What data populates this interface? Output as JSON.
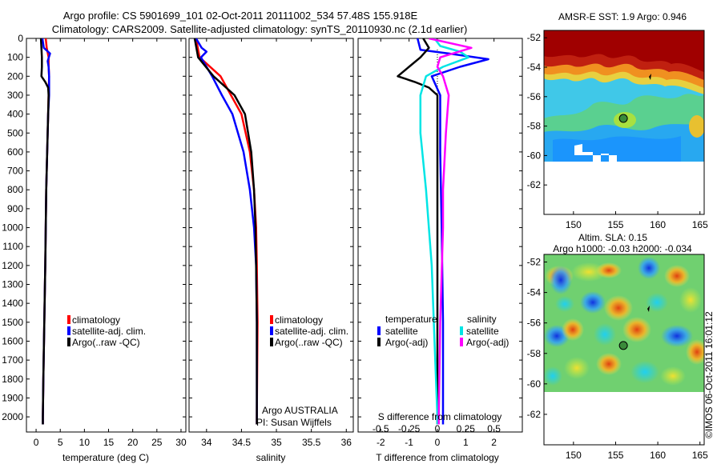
{
  "header": {
    "line1": "Argo profile: CS 5901699_101 02-Oct-2011 20111002_534 57.48S 155.918E",
    "line2": "Climatology: CARS2009. Satellite-adjusted climatology: synTS_20110930.nc (2.1d earlier)"
  },
  "side_text": "©IMOS 06-Oct-2011 16:01:12",
  "colors": {
    "climatology": "#ff0000",
    "satellite": "#0000ff",
    "argo": "#000000",
    "satellite_salinity": "#00e5e5",
    "argo_salinity": "#ff00ff"
  },
  "chart_data": [
    {
      "type": "line",
      "id": "temperature",
      "xlabel": "temperature (deg C)",
      "ylabel": "",
      "xlim": [
        -2,
        31
      ],
      "ylim": [
        2080,
        0
      ],
      "xticks": [
        0,
        5,
        10,
        15,
        20,
        25,
        30
      ],
      "yticks": [
        0,
        100,
        200,
        300,
        400,
        500,
        600,
        700,
        800,
        900,
        1000,
        1100,
        1200,
        1300,
        1400,
        1500,
        1600,
        1700,
        1800,
        1900,
        2000
      ],
      "legend": [
        "climatology",
        "satellite-adj. clim.",
        "Argo(..raw -QC)"
      ],
      "series": [
        {
          "name": "climatology",
          "color": "#ff0000",
          "y": [
            0,
            50,
            100,
            150,
            200,
            300,
            400,
            600,
            800,
            1000,
            1200,
            1500,
            1800,
            2000,
            2040
          ],
          "x": [
            2.0,
            2.2,
            2.6,
            2.6,
            2.7,
            2.6,
            2.5,
            2.3,
            2.1,
            2.0,
            1.9,
            1.7,
            1.5,
            1.4,
            1.4
          ]
        },
        {
          "name": "satellite-adj. clim.",
          "color": "#0000ff",
          "y": [
            0,
            50,
            80,
            120,
            150,
            200,
            300,
            400,
            600,
            800,
            1000,
            1200,
            1500,
            1800,
            2000,
            2040
          ],
          "x": [
            1.3,
            1.6,
            2.9,
            2.4,
            2.6,
            2.7,
            2.7,
            2.5,
            2.3,
            2.1,
            2.0,
            1.9,
            1.7,
            1.5,
            1.4,
            1.4
          ]
        },
        {
          "name": "Argo(..raw -QC)",
          "color": "#000000",
          "y": [
            0,
            50,
            100,
            150,
            200,
            230,
            260,
            300,
            400,
            600,
            800,
            1000,
            1200,
            1500,
            1800,
            2000,
            2040
          ],
          "x": [
            1.0,
            1.1,
            1.2,
            1.2,
            1.1,
            1.9,
            2.5,
            2.6,
            2.5,
            2.3,
            2.1,
            2.0,
            1.9,
            1.7,
            1.5,
            1.4,
            1.4
          ]
        }
      ]
    },
    {
      "type": "line",
      "id": "salinity",
      "xlabel": "salinity",
      "ylabel": "",
      "xlim": [
        33.75,
        36.1
      ],
      "ylim": [
        2080,
        0
      ],
      "xticks": [
        34,
        34.5,
        35,
        35.5,
        36
      ],
      "legend": [
        "climatology",
        "satellite-adj. clim.",
        "Argo(..raw -QC)"
      ],
      "annotation": [
        "Argo AUSTRALIA",
        "PI: Susan Wijffels"
      ],
      "series": [
        {
          "name": "climatology",
          "color": "#ff0000",
          "y": [
            0,
            100,
            200,
            300,
            400,
            600,
            800,
            1000,
            1200,
            1500,
            2000,
            2040
          ],
          "x": [
            33.85,
            33.9,
            34.2,
            34.35,
            34.5,
            34.62,
            34.68,
            34.71,
            34.72,
            34.73,
            34.72,
            34.72
          ]
        },
        {
          "name": "satellite-adj. clim.",
          "color": "#0000ff",
          "y": [
            0,
            50,
            70,
            100,
            150,
            200,
            300,
            400,
            600,
            800,
            1000,
            1200,
            1500,
            2000,
            2040
          ],
          "x": [
            33.85,
            33.93,
            34.0,
            33.92,
            34.0,
            34.08,
            34.22,
            34.37,
            34.53,
            34.62,
            34.68,
            34.71,
            34.72,
            34.72,
            34.72
          ]
        },
        {
          "name": "Argo(..raw -QC)",
          "color": "#000000",
          "y": [
            0,
            100,
            200,
            250,
            300,
            400,
            600,
            800,
            1000,
            1200,
            1500,
            2000,
            2040
          ],
          "x": [
            33.83,
            33.88,
            34.1,
            34.25,
            34.4,
            34.55,
            34.64,
            34.68,
            34.7,
            34.71,
            34.72,
            34.72,
            34.72
          ]
        }
      ]
    },
    {
      "type": "line",
      "id": "difference",
      "xlabel": "T difference from climatology",
      "top_axis_label": "S difference from climatology",
      "ylabel": "",
      "xlim": [
        -2.8,
        3.0
      ],
      "ylim": [
        2080,
        0
      ],
      "xticks": [
        -2,
        -1,
        0,
        1,
        2
      ],
      "top_xticks": [
        -0.5,
        -0.25,
        0,
        0.25,
        0.5
      ],
      "legend_groups": [
        "temperature",
        "salinity"
      ],
      "legend": [
        "satellite",
        "Argo(-adj)",
        "satellite",
        "Argo(-adj)"
      ],
      "series": [
        {
          "name": "satellite",
          "group": "temperature",
          "color": "#0000ff",
          "y": [
            0,
            60,
            80,
            110,
            150,
            200,
            300,
            400,
            600,
            1000,
            1500,
            2000,
            2040
          ],
          "x": [
            -0.7,
            -0.6,
            0.4,
            1.8,
            0.8,
            -0.2,
            0.1,
            0.1,
            0.1,
            0.15,
            0.2,
            0.2,
            0.2
          ]
        },
        {
          "name": "Argo(-adj)",
          "group": "temperature",
          "color": "#000000",
          "y": [
            0,
            50,
            100,
            150,
            200,
            230,
            260,
            300,
            400,
            600,
            1000,
            1500,
            2000,
            2040
          ],
          "x": [
            -0.5,
            -0.3,
            -0.6,
            -1.0,
            -1.4,
            -0.8,
            -0.3,
            0.0,
            0.0,
            0.0,
            0.0,
            0.0,
            0.0,
            0.0
          ]
        },
        {
          "name": "satellite",
          "group": "salinity",
          "color": "#00e5e5",
          "y": [
            0,
            40,
            70,
            100,
            150,
            200,
            300,
            500,
            800,
            1200,
            1600,
            2000,
            2040
          ],
          "x": [
            -0.1,
            0.1,
            0.8,
            1.1,
            0.2,
            -0.4,
            -0.6,
            -0.6,
            -0.4,
            -0.2,
            -0.1,
            0.0,
            0.0
          ]
        },
        {
          "name": "Argo(-adj)",
          "group": "salinity",
          "color": "#ff00ff",
          "y": [
            0,
            50,
            100,
            150,
            200,
            300,
            500,
            800,
            1000,
            1500,
            2000,
            2040
          ],
          "x": [
            -0.3,
            1.2,
            0.1,
            0.0,
            0.2,
            0.4,
            0.3,
            0.2,
            0.2,
            0.1,
            0.05,
            0.05
          ]
        }
      ]
    },
    {
      "type": "heatmap",
      "id": "sst-map",
      "title": "AMSR-E SST: 1.9 Argo: 0.946",
      "xlim": [
        146.5,
        165.5
      ],
      "ylim": [
        -64,
        -51.5
      ],
      "xticks": [
        150,
        155,
        160,
        165
      ],
      "yticks": [
        -52,
        -54,
        -56,
        -58,
        -60,
        -62
      ],
      "data_lat_bottom": -60,
      "profile": {
        "lon": 155.918,
        "lat": -57.48
      }
    },
    {
      "type": "heatmap",
      "id": "sla-map",
      "title": "Altim. SLA: 0.15",
      "subtitle": "Argo h1000: -0.03 h2000: -0.034",
      "xlim": [
        146.5,
        165.5
      ],
      "ylim": [
        -64,
        -51.5
      ],
      "xticks": [
        150,
        155,
        160,
        165
      ],
      "yticks": [
        -52,
        -54,
        -56,
        -58,
        -60,
        -62
      ],
      "data_lat_bottom": -60,
      "profile": {
        "lon": 155.918,
        "lat": -57.48
      }
    }
  ]
}
